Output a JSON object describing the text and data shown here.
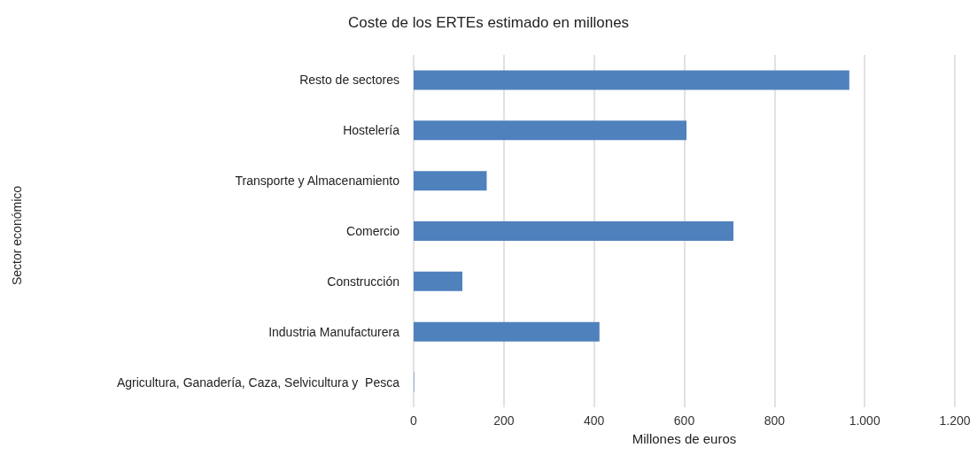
{
  "chart_data": {
    "type": "bar",
    "orientation": "horizontal",
    "title": "Coste de los ERTEs estimado en millones",
    "xlabel": "Millones de euros",
    "annotations": [
      "Sector económico"
    ],
    "categories": [
      "Resto de sectores",
      "Hostelería",
      "Transporte y Almacenamiento",
      "Comercio",
      "Construcción",
      "Industria Manufacturera",
      "Agricultura, Ganadería, Caza, Selvicultura y  Pesca"
    ],
    "values": [
      966,
      605,
      162,
      709,
      108,
      412,
      1
    ],
    "color": "#4f81bd",
    "xlim": [
      0,
      1200
    ],
    "xticks": [
      0,
      200,
      400,
      600,
      800,
      {
        "value": 1000,
        "label": "1.000"
      },
      {
        "value": 1200,
        "label": "1.200"
      }
    ],
    "grid": "x"
  }
}
